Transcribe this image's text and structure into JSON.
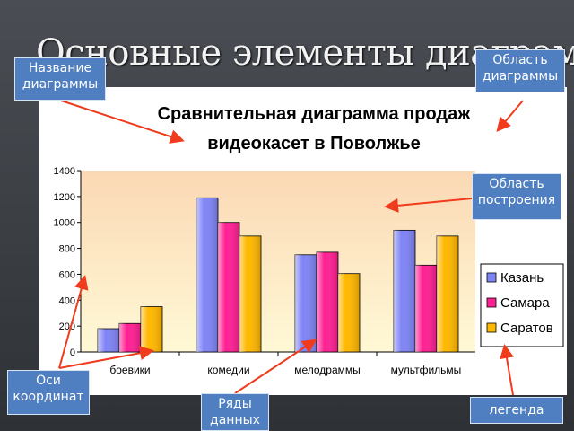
{
  "slide": {
    "title": "Основные элементы диаграммы"
  },
  "callouts": {
    "chart_title": "Название диаграммы",
    "chart_area": "Область диаграммы",
    "plot_area": "Область построения",
    "axes": "Оси координат",
    "series": "Ряды данных",
    "legend": "легенда"
  },
  "colors": {
    "kazan": "#7f84f5",
    "samara": "#ff1f93",
    "saratov": "#ffb800",
    "plot_top": "#fbd8b4",
    "plot_bottom": "#fff9d6",
    "callout": "#4f7fc0",
    "arrow": "#f03b1c"
  },
  "chart_data": {
    "type": "bar",
    "title": "Сравнительная диаграмма продаж видеокасет в Поволжье",
    "title_lines": [
      "Сравнительная диаграмма продаж",
      "видеокасет в Поволжье"
    ],
    "categories": [
      "боевики",
      "комедии",
      "мелодраммы",
      "мультфильмы"
    ],
    "series": [
      {
        "name": "Казань",
        "values": [
          180,
          1190,
          750,
          940
        ]
      },
      {
        "name": "Самара",
        "values": [
          220,
          1000,
          770,
          670
        ]
      },
      {
        "name": "Саратов",
        "values": [
          350,
          895,
          605,
          895
        ]
      }
    ],
    "ylim": [
      0,
      1400
    ],
    "yticks": [
      0,
      200,
      400,
      600,
      800,
      1000,
      1200,
      1400
    ],
    "grid": false,
    "legend": "right"
  }
}
